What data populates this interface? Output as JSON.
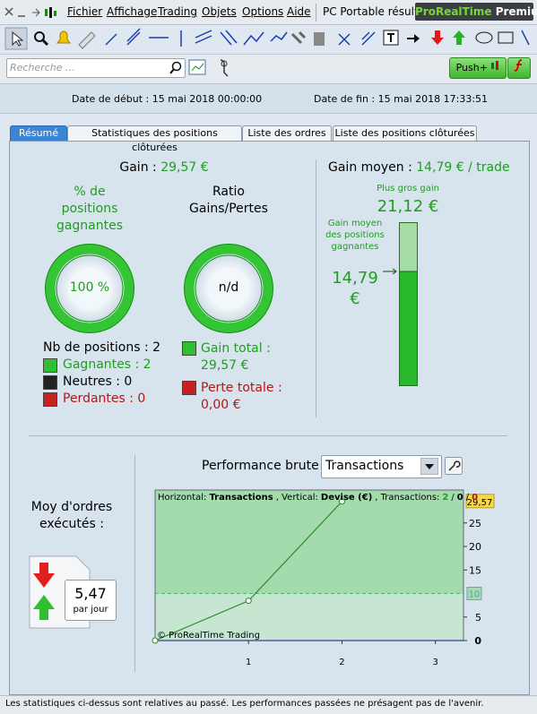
{
  "menu": {
    "items": [
      "Fichier",
      "Affichage",
      "Trading",
      "Objets",
      "Options",
      "Aide"
    ],
    "workspace": "PC Portable résultat",
    "brand": "ProRealTime",
    "edition": "Premium"
  },
  "search": {
    "placeholder": "Recherche ...",
    "push_button": "Push+"
  },
  "period": {
    "start_label": "Date de début :",
    "start": "15 mai 2018 00:00:00",
    "end_label": "Date de fin :",
    "end": "15 mai 2018 17:33:51"
  },
  "tabs": [
    "Résumé",
    "Statistiques des positions clôturées",
    "Liste des ordres",
    "Liste des positions clôturées"
  ],
  "summary": {
    "gain_label": "Gain :",
    "gain": "29,57 €",
    "win_pct_title": "% de positions gagnantes",
    "win_pct": "100 %",
    "ratio_title": "Ratio Gains/Pertes",
    "ratio": "n/d",
    "positions": "Nb de positions : 2",
    "winners": "Gagnantes : 2",
    "neutral": "Neutres : 0",
    "losers": "Perdantes : 0",
    "total_gain_label": "Gain total :",
    "total_gain": "29,57 €",
    "total_loss_label": "Perte totale :",
    "total_loss": "0,00 €"
  },
  "average": {
    "label": "Gain moyen :",
    "value": "14,79 € / trade",
    "max_label": "Plus gros gain",
    "max": "21,12 €",
    "avg_win_label": "Gain moyen des positions gagnantes",
    "avg_win": "14,79 €"
  },
  "orders": {
    "label": "Moy d'ordres exécutés :",
    "value": "5,47",
    "unit": "par jour"
  },
  "performance": {
    "title": "Performance brute",
    "selector": "Transactions",
    "chart": {
      "type": "line",
      "legend": {
        "h_label": "Horizontal:",
        "h_value": "Transactions",
        "v_label": ", Vertical:",
        "v_value": "Devise (€)",
        "t_label": ", Transactions:",
        "wins": "2",
        "separator": "/",
        "neutral": "0",
        "losses": "0"
      },
      "x": [
        0,
        1,
        2
      ],
      "values": [
        0,
        8.45,
        29.57
      ],
      "value_labels": [
        null,
        null,
        "29,57"
      ],
      "color": "#2b8a2b",
      "xlim": [
        0,
        3.3
      ],
      "ylim": [
        0,
        32
      ],
      "xticks": [
        1,
        2,
        3
      ],
      "yticks": [
        0,
        5,
        15,
        20,
        25
      ],
      "reference": 10,
      "credit": "© ProRealTime Trading"
    }
  },
  "footer": "Les statistiques ci-dessus sont relatives au passé. Les performances passées ne présagent pas de l'avenir."
}
